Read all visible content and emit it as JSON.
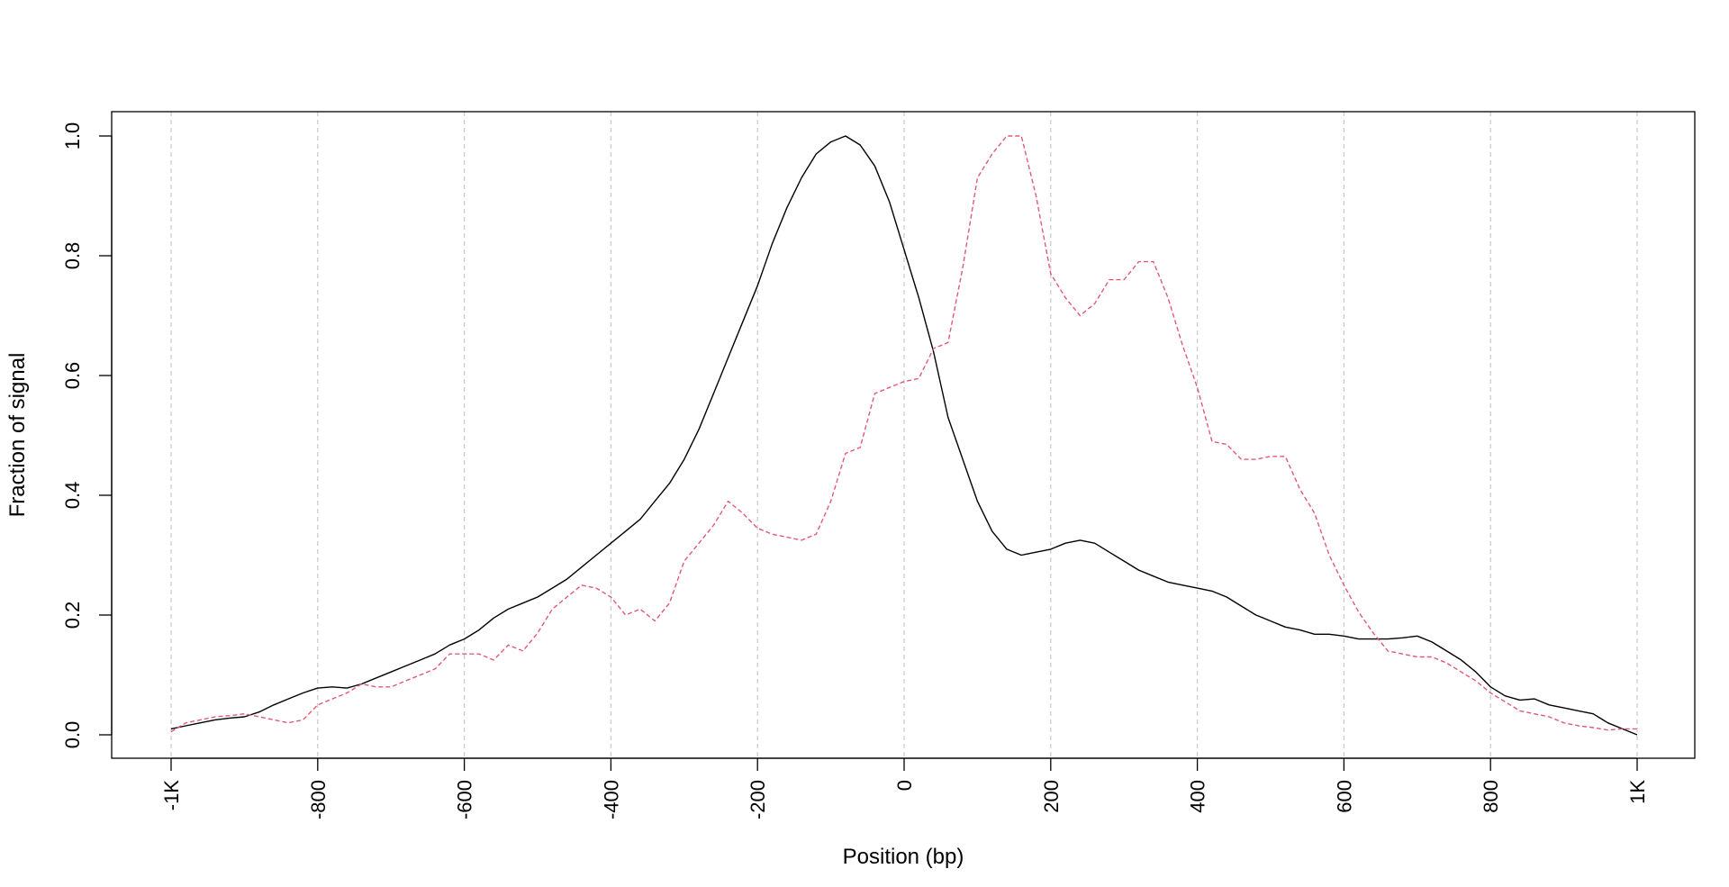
{
  "chart_data": {
    "type": "line",
    "title": "",
    "xlabel": "Position (bp)",
    "ylabel": "Fraction of signal",
    "xlim": [
      -1000,
      1000
    ],
    "ylim": [
      0,
      1
    ],
    "xticks": [
      {
        "value": -1000,
        "label": "-1K"
      },
      {
        "value": -800,
        "label": "-800"
      },
      {
        "value": -600,
        "label": "-600"
      },
      {
        "value": -400,
        "label": "-400"
      },
      {
        "value": -200,
        "label": "-200"
      },
      {
        "value": 0,
        "label": "0"
      },
      {
        "value": 200,
        "label": "200"
      },
      {
        "value": 400,
        "label": "400"
      },
      {
        "value": 600,
        "label": "600"
      },
      {
        "value": 800,
        "label": "800"
      },
      {
        "value": 1000,
        "label": "1K"
      }
    ],
    "yticks": [
      {
        "value": 0.0,
        "label": "0.0"
      },
      {
        "value": 0.2,
        "label": "0.2"
      },
      {
        "value": 0.4,
        "label": "0.4"
      },
      {
        "value": 0.6,
        "label": "0.6"
      },
      {
        "value": 0.8,
        "label": "0.8"
      },
      {
        "value": 1.0,
        "label": "1.0"
      }
    ],
    "vertical_grid": true,
    "series": [
      {
        "color": "#000000",
        "style": "solid",
        "x": [
          -1000,
          -980,
          -960,
          -940,
          -920,
          -900,
          -880,
          -860,
          -840,
          -820,
          -800,
          -780,
          -760,
          -740,
          -720,
          -700,
          -680,
          -660,
          -640,
          -620,
          -600,
          -580,
          -560,
          -540,
          -520,
          -500,
          -480,
          -460,
          -440,
          -420,
          -400,
          -380,
          -360,
          -340,
          -320,
          -300,
          -280,
          -260,
          -240,
          -220,
          -200,
          -180,
          -160,
          -140,
          -120,
          -100,
          -80,
          -60,
          -40,
          -20,
          0,
          20,
          40,
          60,
          80,
          100,
          120,
          140,
          160,
          180,
          200,
          220,
          240,
          260,
          280,
          300,
          320,
          340,
          360,
          380,
          400,
          420,
          440,
          460,
          480,
          500,
          520,
          540,
          560,
          580,
          600,
          620,
          640,
          660,
          680,
          700,
          720,
          740,
          760,
          780,
          800,
          820,
          840,
          860,
          880,
          900,
          920,
          940,
          960,
          980,
          1000
        ],
        "y": [
          0.01,
          0.015,
          0.02,
          0.025,
          0.028,
          0.03,
          0.038,
          0.05,
          0.06,
          0.07,
          0.078,
          0.08,
          0.078,
          0.085,
          0.095,
          0.105,
          0.115,
          0.125,
          0.135,
          0.15,
          0.16,
          0.175,
          0.195,
          0.21,
          0.22,
          0.23,
          0.245,
          0.26,
          0.28,
          0.3,
          0.32,
          0.34,
          0.36,
          0.39,
          0.42,
          0.46,
          0.51,
          0.57,
          0.63,
          0.69,
          0.75,
          0.82,
          0.88,
          0.93,
          0.97,
          0.99,
          1.0,
          0.985,
          0.95,
          0.89,
          0.81,
          0.73,
          0.64,
          0.53,
          0.46,
          0.39,
          0.34,
          0.31,
          0.3,
          0.305,
          0.31,
          0.32,
          0.325,
          0.32,
          0.305,
          0.29,
          0.275,
          0.265,
          0.255,
          0.25,
          0.245,
          0.24,
          0.23,
          0.215,
          0.2,
          0.19,
          0.18,
          0.175,
          0.168,
          0.168,
          0.165,
          0.16,
          0.16,
          0.16,
          0.162,
          0.165,
          0.155,
          0.14,
          0.125,
          0.105,
          0.08,
          0.065,
          0.058,
          0.06,
          0.05,
          0.045,
          0.04,
          0.035,
          0.02,
          0.01,
          0.0
        ]
      },
      {
        "color": "#e05a73",
        "style": "dashed",
        "x": [
          -1000,
          -980,
          -960,
          -940,
          -920,
          -900,
          -880,
          -860,
          -840,
          -820,
          -800,
          -780,
          -760,
          -740,
          -720,
          -700,
          -680,
          -660,
          -640,
          -620,
          -600,
          -580,
          -560,
          -540,
          -520,
          -500,
          -480,
          -460,
          -440,
          -420,
          -400,
          -380,
          -360,
          -340,
          -320,
          -300,
          -280,
          -260,
          -240,
          -220,
          -200,
          -180,
          -160,
          -140,
          -120,
          -100,
          -80,
          -60,
          -40,
          -20,
          0,
          20,
          40,
          60,
          80,
          100,
          120,
          140,
          160,
          180,
          200,
          220,
          240,
          260,
          280,
          300,
          320,
          340,
          360,
          380,
          400,
          420,
          440,
          460,
          480,
          500,
          520,
          540,
          560,
          580,
          600,
          620,
          640,
          660,
          680,
          700,
          720,
          740,
          760,
          780,
          800,
          820,
          840,
          860,
          880,
          900,
          920,
          940,
          960,
          980,
          1000
        ],
        "y": [
          0.005,
          0.02,
          0.025,
          0.03,
          0.032,
          0.035,
          0.03,
          0.025,
          0.02,
          0.025,
          0.05,
          0.06,
          0.07,
          0.085,
          0.08,
          0.08,
          0.09,
          0.1,
          0.11,
          0.135,
          0.135,
          0.135,
          0.125,
          0.15,
          0.14,
          0.17,
          0.21,
          0.23,
          0.25,
          0.245,
          0.23,
          0.2,
          0.21,
          0.19,
          0.22,
          0.29,
          0.32,
          0.35,
          0.39,
          0.37,
          0.345,
          0.335,
          0.33,
          0.325,
          0.335,
          0.39,
          0.47,
          0.48,
          0.57,
          0.58,
          0.59,
          0.595,
          0.645,
          0.655,
          0.78,
          0.93,
          0.97,
          1.0,
          1.0,
          0.9,
          0.77,
          0.73,
          0.7,
          0.72,
          0.76,
          0.76,
          0.79,
          0.79,
          0.73,
          0.65,
          0.58,
          0.49,
          0.485,
          0.46,
          0.46,
          0.465,
          0.465,
          0.41,
          0.37,
          0.3,
          0.25,
          0.205,
          0.17,
          0.14,
          0.135,
          0.13,
          0.13,
          0.12,
          0.105,
          0.09,
          0.07,
          0.055,
          0.04,
          0.035,
          0.03,
          0.02,
          0.015,
          0.012,
          0.008,
          0.01,
          0.01
        ]
      }
    ]
  }
}
